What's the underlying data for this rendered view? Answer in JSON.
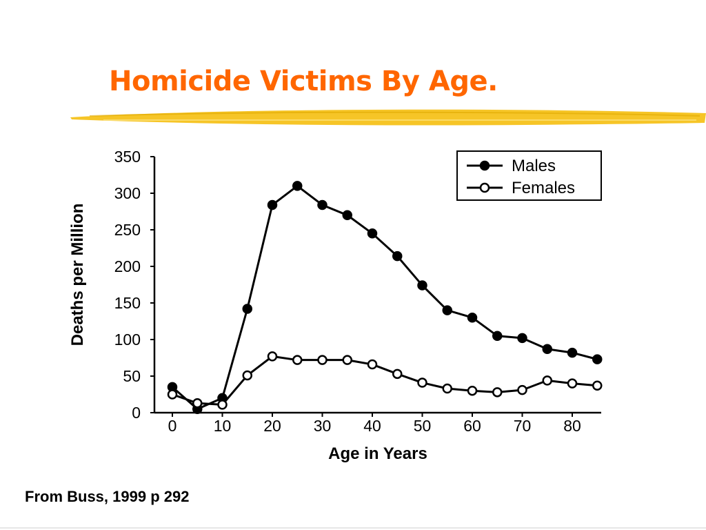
{
  "slide": {
    "title": "Homicide Victims By Age.",
    "source": "From Buss, 1999 p 292",
    "title_color": "#ff6600",
    "brush_color": "#f5c21b"
  },
  "chart_data": {
    "type": "line",
    "xlabel": "Age in Years",
    "ylabel": "Deaths per Million",
    "xlim": [
      0,
      85
    ],
    "ylim": [
      0,
      350
    ],
    "x_ticks": [
      0,
      10,
      20,
      30,
      40,
      50,
      60,
      70,
      80
    ],
    "y_ticks": [
      0,
      50,
      100,
      150,
      200,
      250,
      300,
      350
    ],
    "grid": false,
    "legend_position": "top-right",
    "series": [
      {
        "name": "Males",
        "marker": "filled-circle",
        "x": [
          0,
          5,
          10,
          15,
          20,
          25,
          30,
          35,
          40,
          45,
          50,
          55,
          60,
          65,
          70,
          75,
          80,
          85
        ],
        "values": [
          35,
          5,
          20,
          142,
          284,
          310,
          284,
          270,
          245,
          214,
          174,
          140,
          130,
          105,
          102,
          87,
          82,
          73
        ]
      },
      {
        "name": "Females",
        "marker": "open-circle",
        "x": [
          0,
          5,
          10,
          15,
          20,
          25,
          30,
          35,
          40,
          45,
          50,
          55,
          60,
          65,
          70,
          75,
          80,
          85
        ],
        "values": [
          25,
          13,
          11,
          51,
          77,
          72,
          72,
          72,
          66,
          53,
          41,
          33,
          30,
          28,
          31,
          44,
          40,
          37
        ]
      }
    ]
  }
}
